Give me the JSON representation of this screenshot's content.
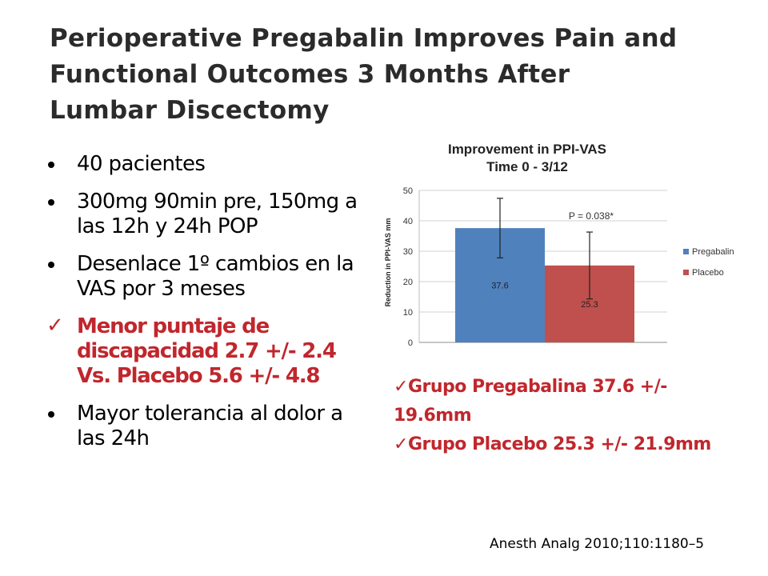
{
  "title": {
    "line1": "Perioperative Pregabalin Improves Pain and",
    "line2": "Functional Outcomes 3 Months After",
    "line3": "Lumbar Discectomy"
  },
  "bullets": [
    {
      "type": "dot",
      "text": "40 pacientes"
    },
    {
      "type": "dot",
      "text": "300mg 90min pre, 150mg a las 12h y 24h POP"
    },
    {
      "type": "dot",
      "text": "Desenlace 1º cambios en la VAS por 3 meses"
    },
    {
      "type": "check",
      "text": "Menor puntaje de discapacidad 2.7 +/- 2.4 Vs. Placebo 5.6 +/- 4.8"
    },
    {
      "type": "dot",
      "text": "Mayor tolerancia al dolor a las 24h"
    }
  ],
  "chart_data": {
    "type": "bar",
    "title_line1": "Improvement in PPI-VAS",
    "title_line2": "Time 0 - 3/12",
    "ylabel": "Reduction in PPI-VAS mm",
    "ylim": [
      0,
      50
    ],
    "yticks": [
      0,
      10,
      20,
      30,
      40,
      50
    ],
    "grid": true,
    "legend": "right",
    "series": [
      {
        "name": "Pregabalin",
        "value": 37.6,
        "label": "37.6",
        "error": 9.8,
        "color": "#4f81bd"
      },
      {
        "name": "Placebo",
        "value": 25.3,
        "label": "25.3",
        "error": 11.0,
        "color": "#c0504d"
      }
    ],
    "annotation": "P = 0.038*"
  },
  "checks": [
    {
      "text": "Grupo Pregabalina 37.6 +/- 19.6mm"
    },
    {
      "text": "Grupo Placebo 25.3 +/- 21.9mm"
    }
  ],
  "citation": "Anesth Analg 2010;110:1180–5",
  "colors": {
    "accent_red": "#c0272d",
    "title_gray": "#2b2b2b"
  }
}
